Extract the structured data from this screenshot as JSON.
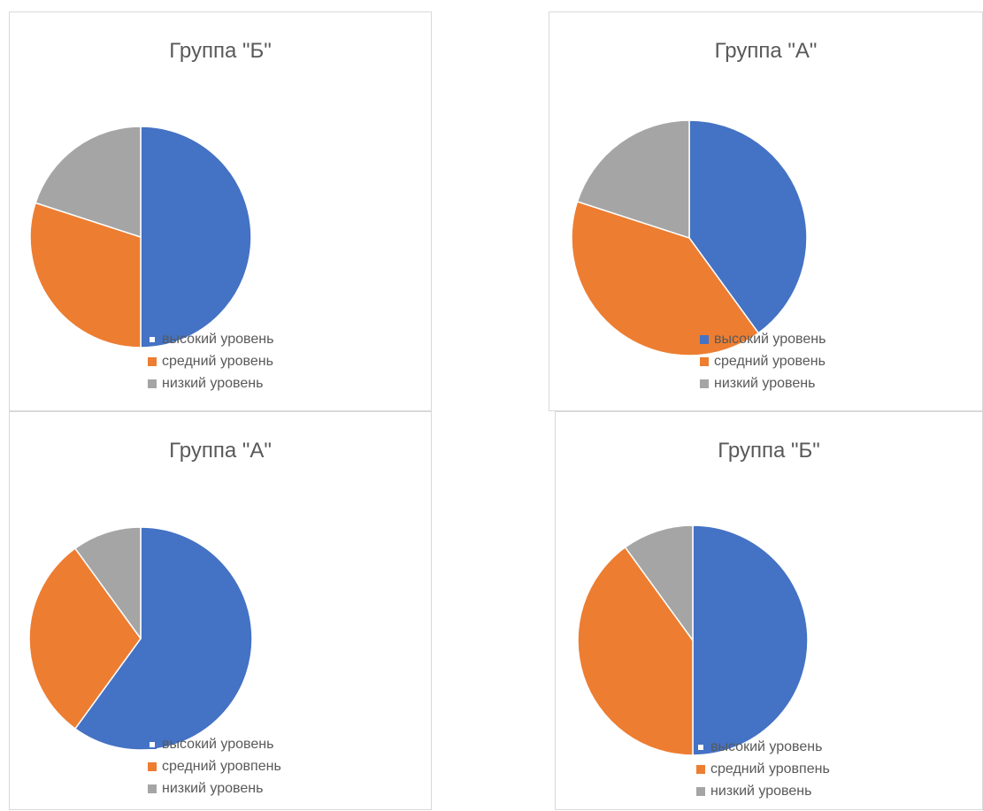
{
  "colors": {
    "series": [
      "#4472C4",
      "#ED7D31",
      "#A5A5A5"
    ],
    "border": "#d9d9d9",
    "text": "#595959"
  },
  "chart_data": [
    {
      "type": "pie",
      "title": "Группа \"Б\"",
      "categories": [
        "высокий уровень",
        "средний уровень",
        "низкий уровень"
      ],
      "values": [
        50,
        30,
        20
      ],
      "legend": "bottom",
      "legend_first_swatch": "outline"
    },
    {
      "type": "pie",
      "title": "Группа \"А\"",
      "categories": [
        "высокий уровень",
        "средний уровень",
        "низкий уровень"
      ],
      "values": [
        40,
        40,
        20
      ],
      "legend": "bottom",
      "legend_first_swatch": "filled"
    },
    {
      "type": "pie",
      "title": "Группа \"А\"",
      "categories": [
        "высокий уровень",
        "средний уровпень",
        "низкий уровень"
      ],
      "values": [
        60,
        30,
        10
      ],
      "legend": "bottom",
      "legend_first_swatch": "outline"
    },
    {
      "type": "pie",
      "title": "Группа \"Б\"",
      "categories": [
        "высокий уровень",
        "средний уровпень",
        "низкий уровень"
      ],
      "values": [
        50,
        40,
        10
      ],
      "legend": "bottom",
      "legend_first_swatch": "outline"
    }
  ]
}
